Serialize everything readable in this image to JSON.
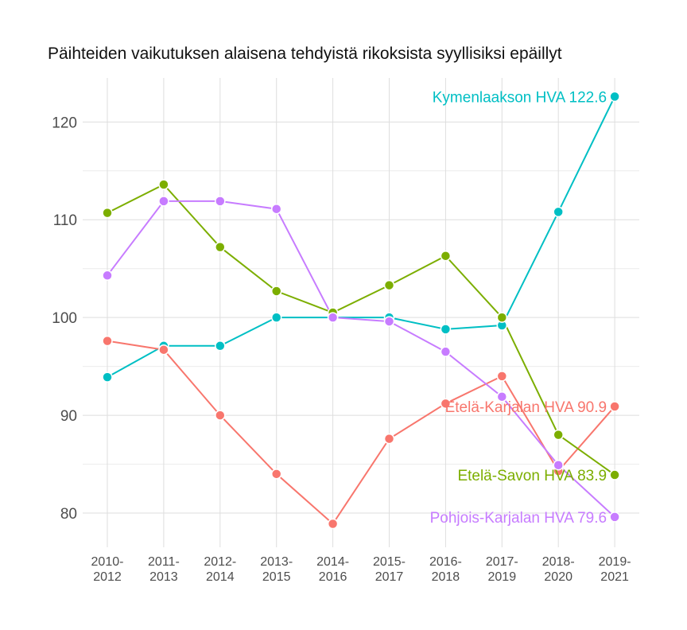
{
  "chart_data": {
    "type": "line",
    "title": "Päihteiden vaikutuksen alaisena tehdyistä rikoksista syyllisiksi epäillyt",
    "xlabel": "",
    "ylabel": "",
    "categories": [
      [
        "2010-",
        "2012"
      ],
      [
        "2011-",
        "2013"
      ],
      [
        "2012-",
        "2014"
      ],
      [
        "2013-",
        "2015"
      ],
      [
        "2014-",
        "2016"
      ],
      [
        "2015-",
        "2017"
      ],
      [
        "2016-",
        "2018"
      ],
      [
        "2017-",
        "2019"
      ],
      [
        "2018-",
        "2020"
      ],
      [
        "2019-",
        "2021"
      ]
    ],
    "yticks": [
      80,
      90,
      100,
      110,
      120
    ],
    "ylim": [
      76.5,
      124.5
    ],
    "grid": true,
    "legend": "none; series labelled at line ends",
    "series": [
      {
        "name": "Kymenlaakson HVA",
        "color": "#00BFC4",
        "end_label": "Kymenlaakson HVA 122.6",
        "values": [
          93.9,
          97.1,
          97.1,
          100.0,
          100.0,
          100.0,
          98.8,
          99.2,
          110.8,
          122.6
        ]
      },
      {
        "name": "Etelä-Karjalan HVA",
        "color": "#F8766D",
        "end_label": "Etelä-Karjalan HVA 90.9",
        "values": [
          97.6,
          96.7,
          90.0,
          84.0,
          78.9,
          87.6,
          91.2,
          94.0,
          84.3,
          90.9
        ]
      },
      {
        "name": "Etelä-Savon HVA",
        "color": "#7CAE00",
        "end_label": "Etelä-Savon HVA 83.9",
        "values": [
          110.7,
          113.6,
          107.2,
          102.7,
          100.5,
          103.3,
          106.3,
          100.0,
          88.0,
          83.9
        ]
      },
      {
        "name": "Pohjois-Karjalan HVA",
        "color": "#C77CFF",
        "end_label": "Pohjois-Karjalan HVA 79.6",
        "values": [
          104.3,
          111.9,
          111.9,
          111.1,
          100.0,
          99.6,
          96.5,
          91.9,
          84.9,
          79.6
        ]
      }
    ]
  }
}
